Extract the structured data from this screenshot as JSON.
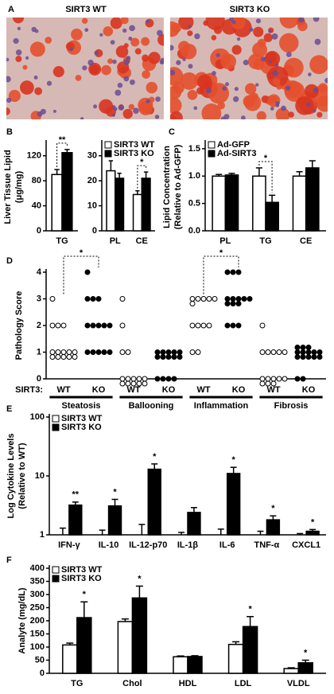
{
  "figure_a": {
    "label": "A",
    "titles": [
      "SIRT3 WT",
      "SIRT3 KO"
    ]
  },
  "chart_data": [
    {
      "type": "bar",
      "label": "B",
      "ylabel": [
        "Liver Tissue Lipid",
        "(μg/mg)"
      ],
      "categories": [
        "TG"
      ],
      "series": [
        {
          "color": "#ffffff",
          "values": [
            90
          ],
          "errors": [
            8
          ]
        },
        {
          "color": "#000000",
          "values": [
            125
          ],
          "errors": [
            5
          ]
        }
      ],
      "ylim": [
        0,
        140
      ],
      "yticks": [
        0,
        40,
        80,
        120
      ],
      "significance": [
        "**"
      ],
      "brackets": true
    },
    {
      "type": "bar",
      "categories": [
        "PL",
        "CE"
      ],
      "series": [
        {
          "name": "SIRT3 WT",
          "color": "#ffffff",
          "values": [
            24,
            14.5
          ],
          "errors": [
            4,
            1.5
          ]
        },
        {
          "name": "SIRT3 KO",
          "color": "#000000",
          "values": [
            21,
            21
          ],
          "errors": [
            2,
            2.5
          ]
        }
      ],
      "ylim": [
        0,
        35
      ],
      "yticks": [
        0,
        10,
        20,
        30
      ],
      "significance": [
        null,
        "*"
      ],
      "brackets": true,
      "legend": "upper left"
    },
    {
      "type": "bar",
      "label": "C",
      "ylabel": [
        "Lipid Concentration",
        "(Relative to Ad-GFP)"
      ],
      "categories": [
        "PL",
        "TG",
        "CE"
      ],
      "series": [
        {
          "name": "Ad-GFP",
          "color": "#ffffff",
          "values": [
            1.0,
            1.0,
            1.0
          ],
          "errors": [
            0.03,
            0.15,
            0.08
          ]
        },
        {
          "name": "Ad-SIRT3",
          "color": "#000000",
          "values": [
            1.02,
            0.52,
            1.15
          ],
          "errors": [
            0.03,
            0.13,
            0.13
          ]
        }
      ],
      "ylim": [
        0,
        1.6
      ],
      "yticks": [
        {
          "value": 0,
          "label": "0.0"
        },
        0.5,
        {
          "value": 1,
          "label": "1.0"
        },
        1.5
      ],
      "significance": [
        null,
        "*",
        null
      ],
      "brackets": true,
      "legend": "upper left"
    },
    {
      "type": "dot",
      "label": "D",
      "ylabel": [
        "Pathology Score"
      ],
      "group_label": "SIRT3:",
      "categories": [
        "Steatosis",
        "Ballooning",
        "Inflammation",
        "Fibrosis"
      ],
      "series": [
        {
          "name": "WT",
          "color": "#ffffff",
          "values": [
            [
              3,
              2,
              2,
              2,
              1,
              1,
              1,
              1,
              1,
              1,
              1,
              1,
              1,
              1
            ],
            [
              3,
              2,
              1,
              1,
              0,
              0,
              0,
              0,
              0,
              0,
              0,
              0,
              0,
              0
            ],
            [
              3,
              3,
              3,
              3,
              3,
              3,
              2,
              2,
              2,
              2,
              1,
              1
            ],
            [
              2,
              1,
              1,
              1,
              1,
              1,
              0,
              0,
              0,
              0,
              0,
              0,
              0,
              0
            ]
          ]
        },
        {
          "name": "KO",
          "color": "#000000",
          "values": [
            [
              4,
              3,
              3,
              3,
              2,
              2,
              2,
              2,
              2,
              1,
              1,
              1,
              1,
              1
            ],
            [
              1,
              1,
              1,
              1,
              1,
              1,
              1,
              1,
              1,
              1,
              0,
              0,
              0,
              0
            ],
            [
              4,
              4,
              4,
              3,
              3,
              3,
              3,
              3,
              3,
              3,
              3,
              2,
              2,
              2
            ],
            [
              1,
              1,
              1,
              1,
              1,
              1,
              1,
              1,
              1,
              1,
              1,
              1,
              1,
              0,
              0
            ]
          ]
        }
      ],
      "ylim": [
        0,
        4
      ],
      "yticks": [
        0,
        1,
        2,
        3,
        4
      ],
      "significance": [
        "*",
        null,
        "*",
        null
      ],
      "brackets": true
    },
    {
      "type": "bar",
      "label": "E",
      "ylabel": [
        "Log Cytokine Levels",
        "(Relative to WT)"
      ],
      "categories": [
        "IFN-γ",
        "IL-10",
        "IL-12-p70",
        "IL-1β",
        "IL-6",
        "TNF-α",
        "CXCL1"
      ],
      "series": [
        {
          "name": "SIRT3 WT",
          "color": "#ffffff",
          "values": [
            1,
            1,
            1,
            1,
            1,
            1,
            1
          ],
          "errors": [
            0.3,
            0.2,
            0.5,
            0.1,
            0.25,
            0.15,
            0.05
          ]
        },
        {
          "name": "SIRT3 KO",
          "color": "#000000",
          "values": [
            3.2,
            3.1,
            13,
            2.4,
            11,
            1.8,
            1.15
          ],
          "errors": [
            0.4,
            0.9,
            3,
            0.5,
            3,
            0.3,
            0.08
          ]
        }
      ],
      "log_scale": true,
      "ylim": [
        1,
        100
      ],
      "yticks": [
        1,
        10,
        100
      ],
      "significance": [
        "**",
        "*",
        "*",
        null,
        "*",
        "*",
        "*"
      ],
      "brackets": false,
      "legend": "upper left"
    },
    {
      "type": "bar",
      "label": "F",
      "ylabel": [
        "Analyte (mg/dL)"
      ],
      "categories": [
        "TG",
        "Chol",
        "HDL",
        "LDL",
        "VLDL"
      ],
      "series": [
        {
          "name": "SIRT3 WT",
          "color": "#ffffff",
          "values": [
            108,
            197,
            63,
            110,
            18
          ],
          "errors": [
            7,
            10,
            3,
            10,
            3
          ]
        },
        {
          "name": "SIRT3 KO",
          "color": "#000000",
          "values": [
            212,
            287,
            64,
            178,
            40
          ],
          "errors": [
            60,
            45,
            3,
            38,
            10
          ]
        }
      ],
      "ylim": [
        0,
        400
      ],
      "yticks": [
        0,
        50,
        100,
        150,
        200,
        250,
        300,
        350,
        400
      ],
      "significance": [
        "*",
        "*",
        null,
        "*",
        "*"
      ],
      "brackets": false,
      "legend": "upper left"
    }
  ]
}
